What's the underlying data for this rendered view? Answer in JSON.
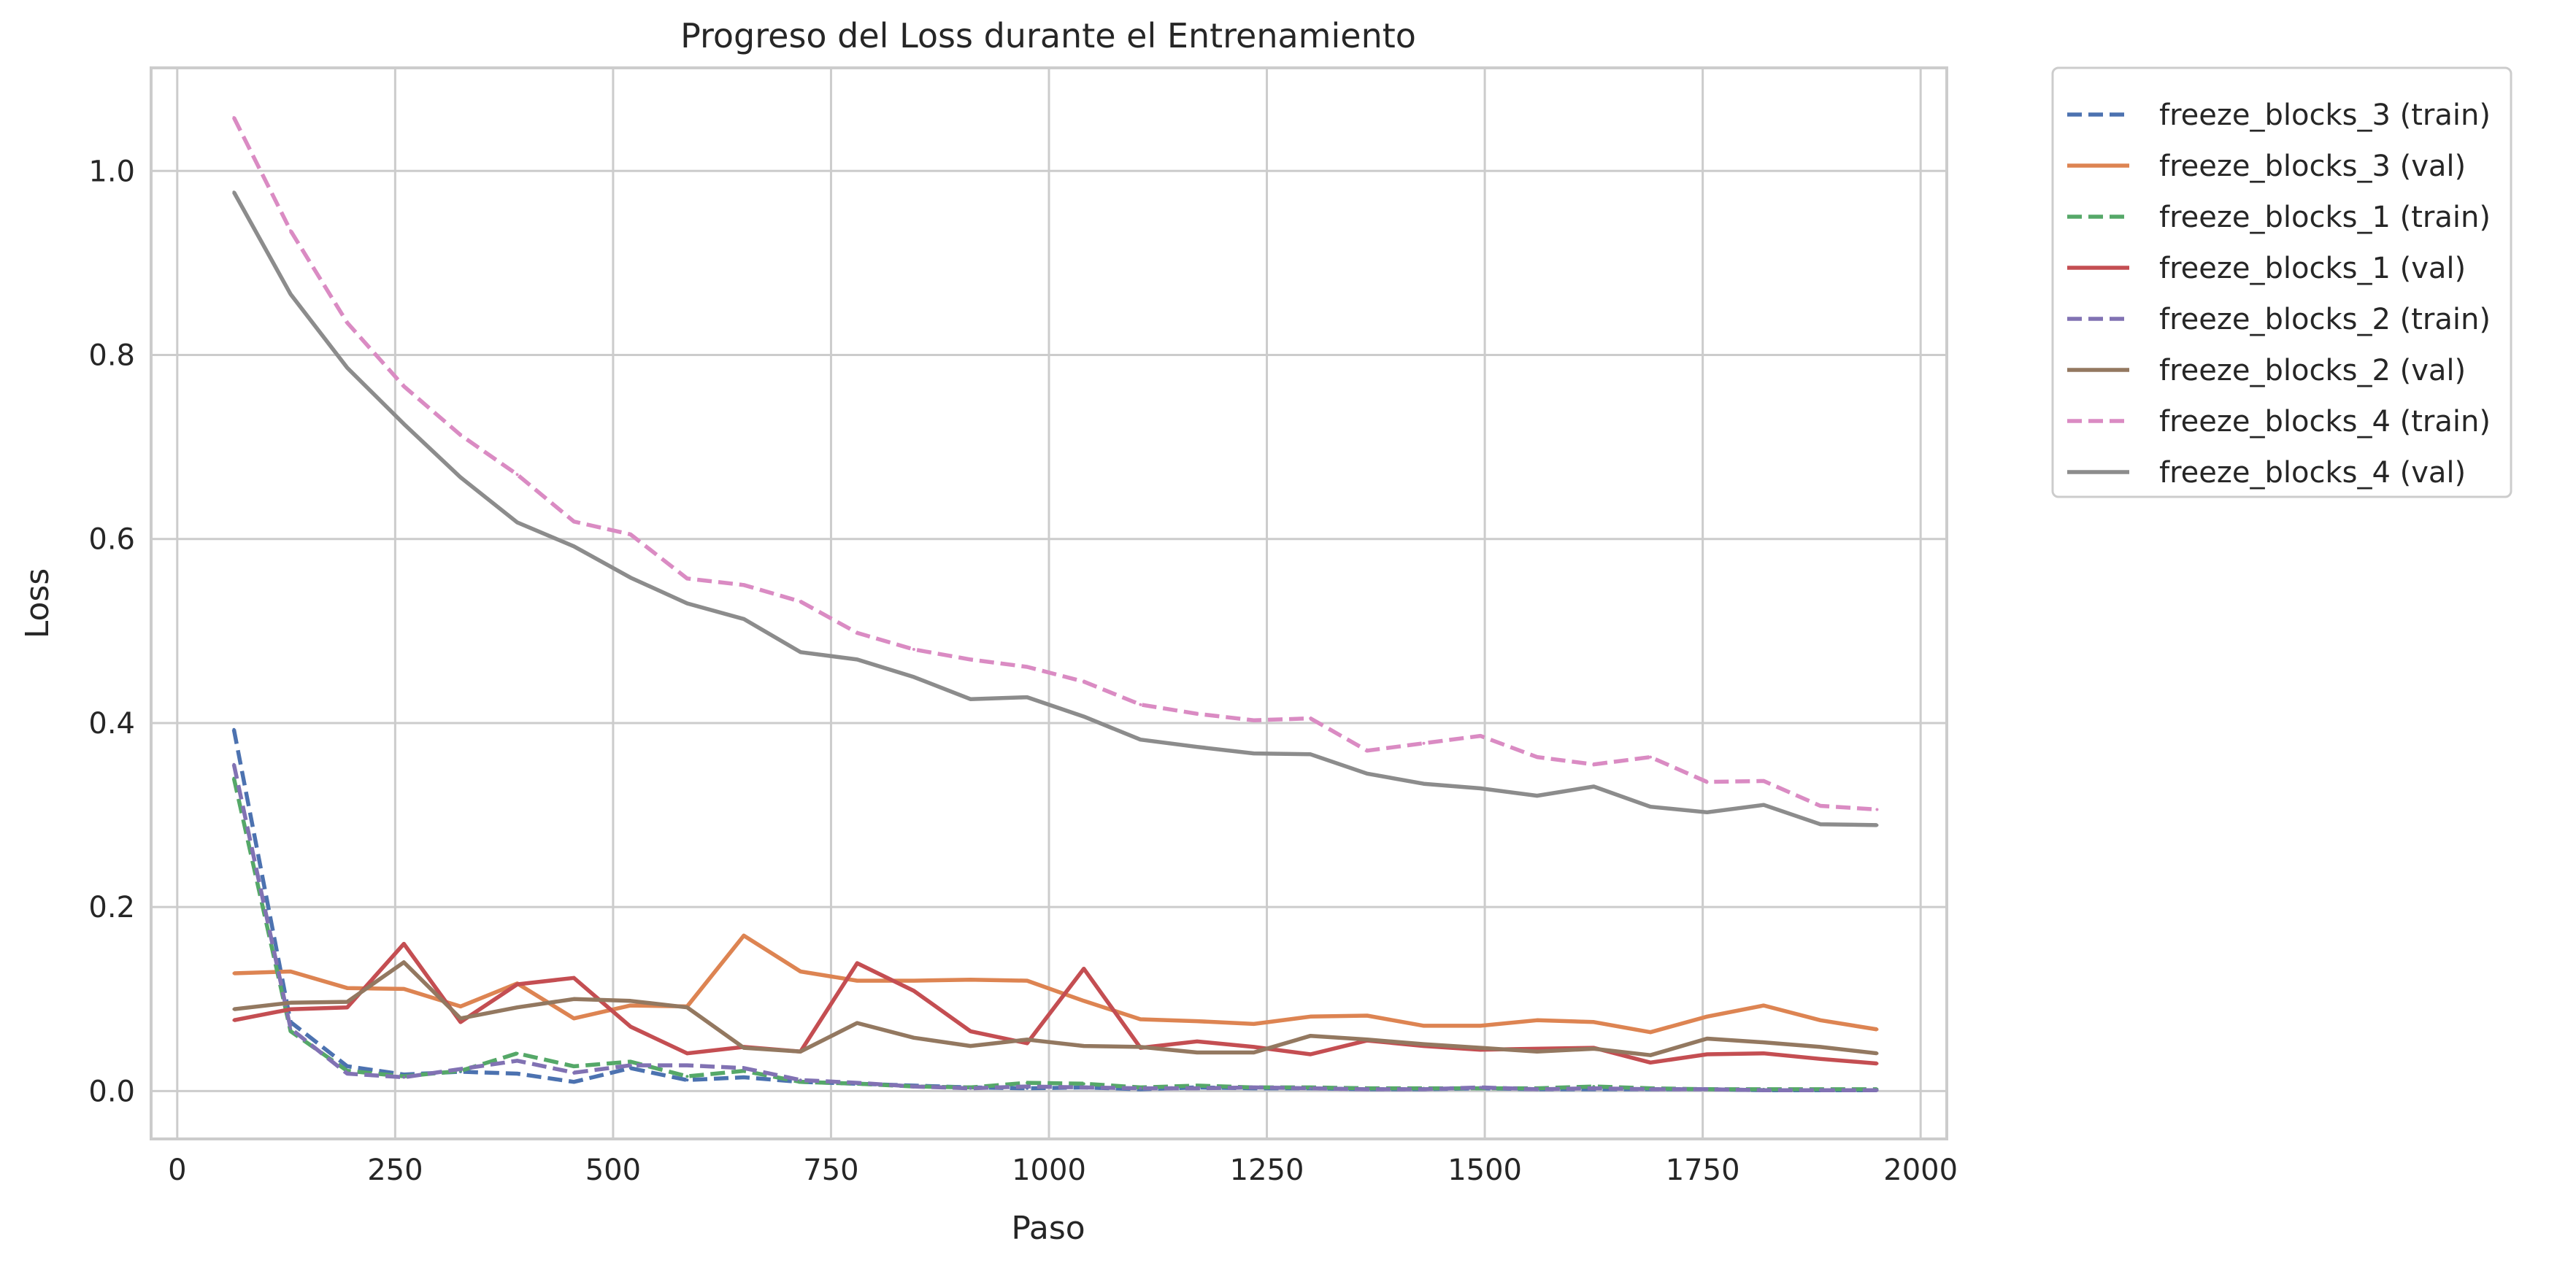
{
  "chart_data": {
    "type": "line",
    "title": "Progreso del Loss durante el Entrenamiento",
    "xlabel": "Paso",
    "ylabel": "Loss",
    "xlim": [
      -30,
      2030
    ],
    "ylim": [
      -0.052,
      1.112
    ],
    "xticks": [
      0,
      250,
      500,
      750,
      1000,
      1250,
      1500,
      1750,
      2000
    ],
    "yticks": [
      0.0,
      0.2,
      0.4,
      0.6,
      0.8,
      1.0
    ],
    "xtick_labels": [
      "0",
      "250",
      "500",
      "750",
      "1000",
      "1250",
      "1500",
      "1750",
      "2000"
    ],
    "ytick_labels": [
      "0.0",
      "0.2",
      "0.4",
      "0.6",
      "0.8",
      "1.0"
    ],
    "grid": true,
    "legend_position": "outside-top-right",
    "x": [
      65,
      130,
      195,
      260,
      325,
      390,
      455,
      520,
      585,
      650,
      715,
      780,
      845,
      910,
      975,
      1040,
      1105,
      1170,
      1235,
      1300,
      1365,
      1430,
      1495,
      1560,
      1625,
      1690,
      1755,
      1820,
      1885,
      1950
    ],
    "series": [
      {
        "name": "freeze_blocks_3 (train)",
        "color": "#4c72b0",
        "style": "dashed",
        "values": [
          0.393,
          0.075,
          0.027,
          0.018,
          0.021,
          0.019,
          0.01,
          0.025,
          0.012,
          0.015,
          0.01,
          0.008,
          0.006,
          0.004,
          0.003,
          0.004,
          0.002,
          0.004,
          0.003,
          0.003,
          0.002,
          0.002,
          0.003,
          0.002,
          0.002,
          0.002,
          0.002,
          0.001,
          0.001,
          0.001
        ]
      },
      {
        "name": "freeze_blocks_3 (val)",
        "color": "#dd8452",
        "style": "solid",
        "values": [
          0.128,
          0.13,
          0.112,
          0.111,
          0.092,
          0.117,
          0.079,
          0.093,
          0.092,
          0.169,
          0.13,
          0.12,
          0.12,
          0.121,
          0.12,
          0.098,
          0.078,
          0.076,
          0.073,
          0.081,
          0.082,
          0.071,
          0.071,
          0.077,
          0.075,
          0.064,
          0.081,
          0.093,
          0.077,
          0.067
        ]
      },
      {
        "name": "freeze_blocks_1 (train)",
        "color": "#55a868",
        "style": "dashed",
        "values": [
          0.34,
          0.065,
          0.022,
          0.016,
          0.022,
          0.041,
          0.027,
          0.032,
          0.016,
          0.022,
          0.01,
          0.008,
          0.005,
          0.004,
          0.009,
          0.008,
          0.004,
          0.006,
          0.004,
          0.004,
          0.003,
          0.003,
          0.003,
          0.003,
          0.005,
          0.003,
          0.002,
          0.002,
          0.002,
          0.002
        ]
      },
      {
        "name": "freeze_blocks_1 (val)",
        "color": "#c44e52",
        "style": "solid",
        "values": [
          0.077,
          0.089,
          0.091,
          0.16,
          0.075,
          0.116,
          0.123,
          0.07,
          0.041,
          0.048,
          0.043,
          0.139,
          0.109,
          0.065,
          0.052,
          0.133,
          0.047,
          0.054,
          0.048,
          0.04,
          0.055,
          0.049,
          0.045,
          0.046,
          0.047,
          0.031,
          0.04,
          0.041,
          0.035,
          0.03
        ]
      },
      {
        "name": "freeze_blocks_2 (train)",
        "color": "#8172b3",
        "style": "dashed",
        "values": [
          0.355,
          0.068,
          0.019,
          0.015,
          0.024,
          0.033,
          0.02,
          0.028,
          0.028,
          0.025,
          0.012,
          0.009,
          0.005,
          0.003,
          0.005,
          0.004,
          0.003,
          0.003,
          0.004,
          0.003,
          0.002,
          0.002,
          0.004,
          0.002,
          0.003,
          0.002,
          0.002,
          0.001,
          0.001,
          0.001
        ]
      },
      {
        "name": "freeze_blocks_2 (val)",
        "color": "#937860",
        "style": "solid",
        "values": [
          0.089,
          0.096,
          0.097,
          0.14,
          0.079,
          0.091,
          0.1,
          0.098,
          0.091,
          0.047,
          0.043,
          0.074,
          0.058,
          0.049,
          0.056,
          0.049,
          0.048,
          0.042,
          0.042,
          0.06,
          0.056,
          0.051,
          0.047,
          0.043,
          0.046,
          0.039,
          0.057,
          0.053,
          0.048,
          0.041
        ]
      },
      {
        "name": "freeze_blocks_4 (train)",
        "color": "#da8bc3",
        "style": "dashed",
        "values": [
          1.058,
          0.935,
          0.835,
          0.766,
          0.713,
          0.67,
          0.619,
          0.605,
          0.557,
          0.55,
          0.532,
          0.498,
          0.48,
          0.469,
          0.461,
          0.445,
          0.42,
          0.41,
          0.403,
          0.405,
          0.37,
          0.378,
          0.386,
          0.363,
          0.355,
          0.363,
          0.336,
          0.337,
          0.31,
          0.306
        ]
      },
      {
        "name": "freeze_blocks_4 (val)",
        "color": "#8c8c8c",
        "style": "solid",
        "values": [
          0.977,
          0.866,
          0.786,
          0.725,
          0.667,
          0.618,
          0.592,
          0.558,
          0.53,
          0.513,
          0.477,
          0.469,
          0.45,
          0.426,
          0.428,
          0.407,
          0.382,
          0.374,
          0.367,
          0.366,
          0.345,
          0.334,
          0.329,
          0.321,
          0.331,
          0.309,
          0.303,
          0.311,
          0.29,
          0.289
        ]
      }
    ]
  }
}
